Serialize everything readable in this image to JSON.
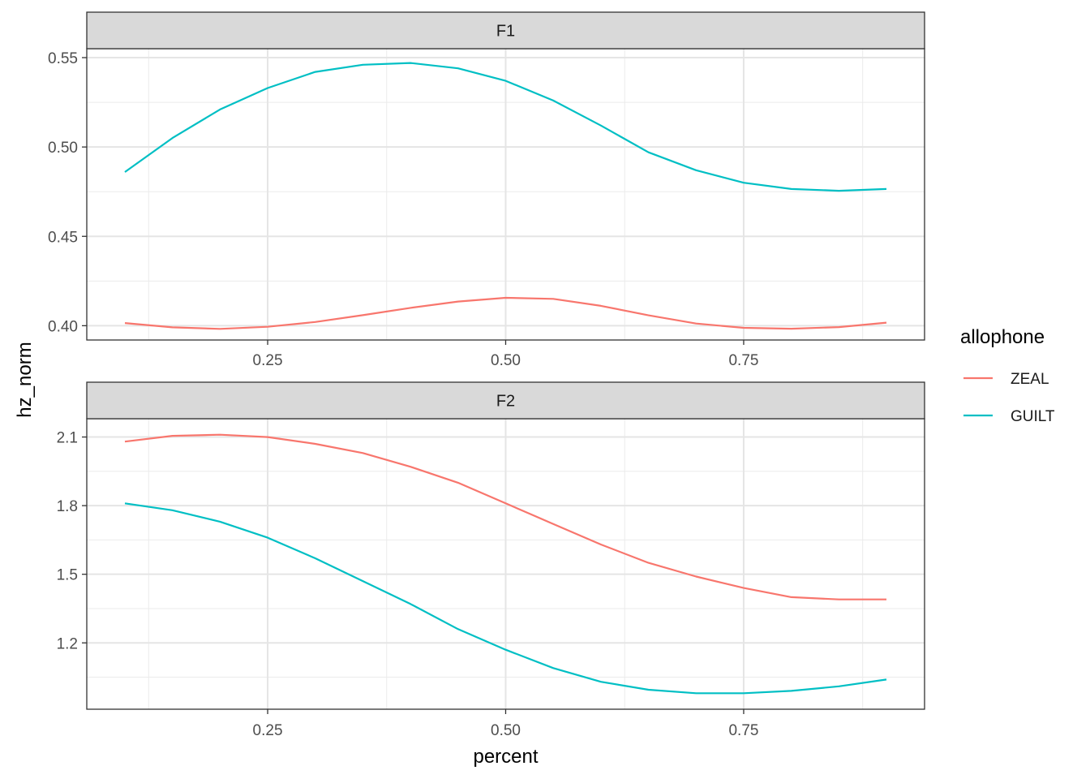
{
  "chart_data": {
    "type": "line",
    "xlabel": "percent",
    "ylabel": "hz_norm",
    "xlim": [
      0.06,
      0.94
    ],
    "x_ticks": [
      0.25,
      0.5,
      0.75
    ],
    "x_tick_labels": [
      "0.25",
      "0.50",
      "0.75"
    ],
    "legend": {
      "title": "allophone",
      "placement": "right",
      "entries": [
        {
          "label": "ZEAL",
          "color": "#F8766D"
        },
        {
          "label": "GUILT",
          "color": "#00BFC4"
        }
      ]
    },
    "grid": true,
    "panels": [
      {
        "strip": "F1",
        "ylim": [
          0.392,
          0.555
        ],
        "y_ticks": [
          0.4,
          0.45,
          0.5,
          0.55
        ],
        "y_tick_labels": [
          "0.40",
          "0.45",
          "0.50",
          "0.55"
        ],
        "series": [
          {
            "name": "ZEAL",
            "color": "#F8766D",
            "x": [
              0.1,
              0.15,
              0.2,
              0.25,
              0.3,
              0.35,
              0.4,
              0.45,
              0.5,
              0.55,
              0.6,
              0.65,
              0.7,
              0.75,
              0.8,
              0.85,
              0.9
            ],
            "y": [
              0.4015,
              0.3991,
              0.3982,
              0.3994,
              0.4021,
              0.4059,
              0.41,
              0.4135,
              0.4156,
              0.415,
              0.4111,
              0.4058,
              0.4012,
              0.3988,
              0.3983,
              0.3992,
              0.4017
            ]
          },
          {
            "name": "GUILT",
            "color": "#00BFC4",
            "x": [
              0.1,
              0.15,
              0.2,
              0.25,
              0.3,
              0.35,
              0.4,
              0.45,
              0.5,
              0.55,
              0.6,
              0.65,
              0.7,
              0.75,
              0.8,
              0.85,
              0.9
            ],
            "y": [
              0.486,
              0.505,
              0.521,
              0.533,
              0.542,
              0.546,
              0.547,
              0.544,
              0.537,
              0.526,
              0.512,
              0.497,
              0.487,
              0.48,
              0.4765,
              0.4755,
              0.4765
            ]
          }
        ]
      },
      {
        "strip": "F2",
        "ylim": [
          0.91,
          2.18
        ],
        "y_ticks": [
          1.2,
          1.5,
          1.8,
          2.1
        ],
        "y_tick_labels": [
          "1.2",
          "1.5",
          "1.8",
          "2.1"
        ],
        "series": [
          {
            "name": "ZEAL",
            "color": "#F8766D",
            "x": [
              0.1,
              0.15,
              0.2,
              0.25,
              0.3,
              0.35,
              0.4,
              0.45,
              0.5,
              0.55,
              0.6,
              0.65,
              0.7,
              0.75,
              0.8,
              0.85,
              0.9
            ],
            "y": [
              2.08,
              2.105,
              2.11,
              2.1,
              2.07,
              2.03,
              1.97,
              1.9,
              1.81,
              1.72,
              1.63,
              1.55,
              1.49,
              1.44,
              1.4,
              1.39,
              1.39
            ]
          },
          {
            "name": "GUILT",
            "color": "#00BFC4",
            "x": [
              0.1,
              0.15,
              0.2,
              0.25,
              0.3,
              0.35,
              0.4,
              0.45,
              0.5,
              0.55,
              0.6,
              0.65,
              0.7,
              0.75,
              0.8,
              0.85,
              0.9
            ],
            "y": [
              1.81,
              1.78,
              1.73,
              1.66,
              1.57,
              1.47,
              1.37,
              1.26,
              1.17,
              1.09,
              1.03,
              0.995,
              0.98,
              0.98,
              0.99,
              1.01,
              1.04
            ]
          }
        ]
      }
    ]
  }
}
